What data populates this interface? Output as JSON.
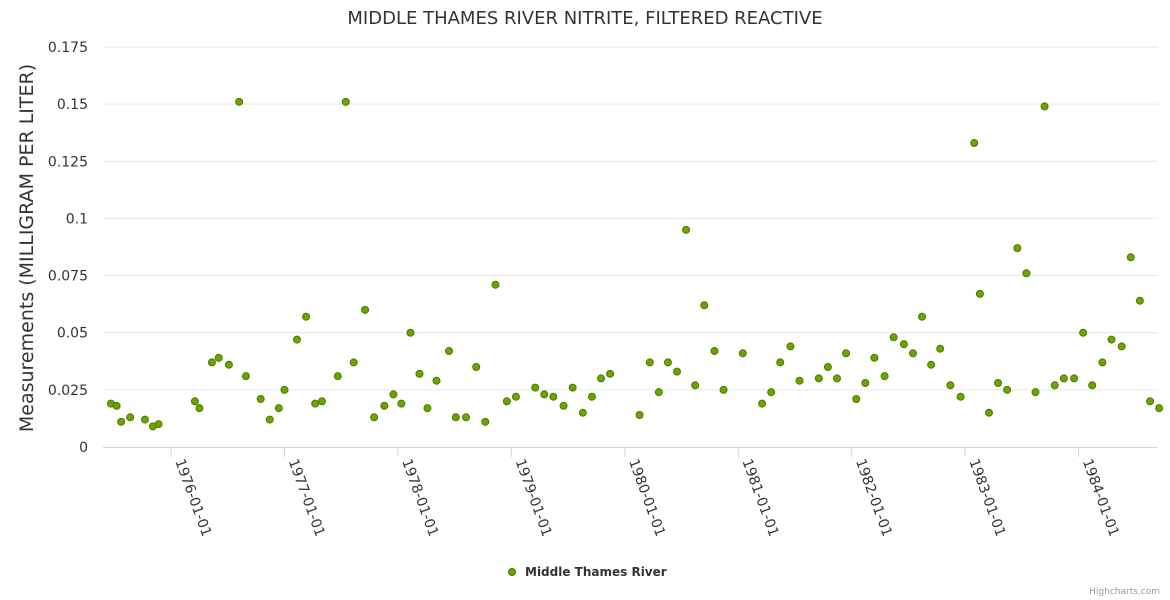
{
  "chart_data": {
    "type": "scatter",
    "title": "MIDDLE THAMES RIVER NITRITE, FILTERED REACTIVE",
    "ylabel": "Measurements (MILLIGRAM PER LITER)",
    "xlabel": "",
    "ylim": [
      0,
      0.175
    ],
    "xlim": [
      1975.4,
      1984.7
    ],
    "yticks": [
      0,
      0.025,
      0.05,
      0.075,
      0.1,
      0.125,
      0.15,
      0.175
    ],
    "ytick_labels": [
      "0",
      "0.025",
      "0.05",
      "0.075",
      "0.1",
      "0.125",
      "0.15",
      "0.175"
    ],
    "xticks": [
      1976,
      1977,
      1978,
      1979,
      1980,
      1981,
      1982,
      1983,
      1984
    ],
    "xtick_labels": [
      "1976-01-01",
      "1977-01-01",
      "1978-01-01",
      "1979-01-01",
      "1980-01-01",
      "1981-01-01",
      "1982-01-01",
      "1983-01-01",
      "1984-01-01"
    ],
    "grid": true,
    "legend_position": "bottom-center",
    "series": [
      {
        "name": "Middle Thames River",
        "color": "#6aa500",
        "border_color": "#4c7a00",
        "points": [
          [
            1975.47,
            0.019
          ],
          [
            1975.52,
            0.018
          ],
          [
            1975.56,
            0.011
          ],
          [
            1975.64,
            0.013
          ],
          [
            1975.77,
            0.012
          ],
          [
            1975.84,
            0.009
          ],
          [
            1975.89,
            0.01
          ],
          [
            1976.21,
            0.02
          ],
          [
            1976.25,
            0.017
          ],
          [
            1976.36,
            0.037
          ],
          [
            1976.42,
            0.039
          ],
          [
            1976.51,
            0.036
          ],
          [
            1976.6,
            0.151
          ],
          [
            1976.66,
            0.031
          ],
          [
            1976.79,
            0.021
          ],
          [
            1976.87,
            0.012
          ],
          [
            1976.95,
            0.017
          ],
          [
            1977.0,
            0.025
          ],
          [
            1977.11,
            0.047
          ],
          [
            1977.19,
            0.057
          ],
          [
            1977.27,
            0.019
          ],
          [
            1977.33,
            0.02
          ],
          [
            1977.47,
            0.031
          ],
          [
            1977.54,
            0.151
          ],
          [
            1977.61,
            0.037
          ],
          [
            1977.71,
            0.06
          ],
          [
            1977.79,
            0.013
          ],
          [
            1977.88,
            0.018
          ],
          [
            1977.96,
            0.023
          ],
          [
            1978.03,
            0.019
          ],
          [
            1978.11,
            0.05
          ],
          [
            1978.19,
            0.032
          ],
          [
            1978.26,
            0.017
          ],
          [
            1978.34,
            0.029
          ],
          [
            1978.45,
            0.042
          ],
          [
            1978.51,
            0.013
          ],
          [
            1978.6,
            0.013
          ],
          [
            1978.69,
            0.035
          ],
          [
            1978.77,
            0.011
          ],
          [
            1978.86,
            0.071
          ],
          [
            1978.96,
            0.02
          ],
          [
            1979.04,
            0.022
          ],
          [
            1979.21,
            0.026
          ],
          [
            1979.29,
            0.023
          ],
          [
            1979.37,
            0.022
          ],
          [
            1979.46,
            0.018
          ],
          [
            1979.54,
            0.026
          ],
          [
            1979.63,
            0.015
          ],
          [
            1979.71,
            0.022
          ],
          [
            1979.79,
            0.03
          ],
          [
            1979.87,
            0.032
          ],
          [
            1980.13,
            0.014
          ],
          [
            1980.22,
            0.037
          ],
          [
            1980.3,
            0.024
          ],
          [
            1980.38,
            0.037
          ],
          [
            1980.46,
            0.033
          ],
          [
            1980.54,
            0.095
          ],
          [
            1980.62,
            0.027
          ],
          [
            1980.7,
            0.062
          ],
          [
            1980.79,
            0.042
          ],
          [
            1980.87,
            0.025
          ],
          [
            1981.04,
            0.041
          ],
          [
            1981.21,
            0.019
          ],
          [
            1981.29,
            0.024
          ],
          [
            1981.37,
            0.037
          ],
          [
            1981.46,
            0.044
          ],
          [
            1981.54,
            0.029
          ],
          [
            1981.71,
            0.03
          ],
          [
            1981.79,
            0.035
          ],
          [
            1981.87,
            0.03
          ],
          [
            1981.95,
            0.041
          ],
          [
            1982.04,
            0.021
          ],
          [
            1982.12,
            0.028
          ],
          [
            1982.2,
            0.039
          ],
          [
            1982.29,
            0.031
          ],
          [
            1982.37,
            0.048
          ],
          [
            1982.46,
            0.045
          ],
          [
            1982.54,
            0.041
          ],
          [
            1982.62,
            0.057
          ],
          [
            1982.7,
            0.036
          ],
          [
            1982.78,
            0.043
          ],
          [
            1982.87,
            0.027
          ],
          [
            1982.96,
            0.022
          ],
          [
            1983.08,
            0.133
          ],
          [
            1983.13,
            0.067
          ],
          [
            1983.21,
            0.015
          ],
          [
            1983.29,
            0.028
          ],
          [
            1983.37,
            0.025
          ],
          [
            1983.46,
            0.087
          ],
          [
            1983.54,
            0.076
          ],
          [
            1983.62,
            0.024
          ],
          [
            1983.7,
            0.149
          ],
          [
            1983.79,
            0.027
          ],
          [
            1983.87,
            0.03
          ],
          [
            1983.96,
            0.03
          ],
          [
            1984.04,
            0.05
          ],
          [
            1984.12,
            0.027
          ],
          [
            1984.21,
            0.037
          ],
          [
            1984.29,
            0.047
          ],
          [
            1984.38,
            0.044
          ],
          [
            1984.46,
            0.083
          ],
          [
            1984.54,
            0.064
          ],
          [
            1984.63,
            0.02
          ],
          [
            1984.71,
            0.017
          ]
        ]
      }
    ]
  },
  "legend": {
    "label": "Middle Thames River"
  },
  "credits": {
    "text": "Highcharts.com"
  }
}
